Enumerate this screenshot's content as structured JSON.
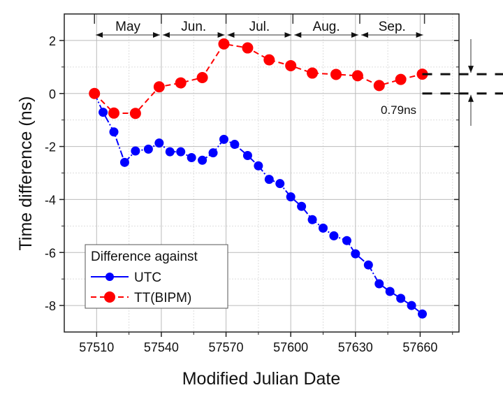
{
  "chart_data": {
    "type": "line",
    "xlabel": "Modified Julian Date",
    "ylabel": "Time difference (ns)",
    "xlim": [
      57495,
      57678
    ],
    "ylim": [
      -9,
      3
    ],
    "xticks": [
      57510,
      57540,
      57570,
      57600,
      57630,
      57660
    ],
    "yticks": [
      2,
      0,
      -2,
      -4,
      -6,
      -8
    ],
    "grid": true,
    "legend": {
      "title": "Difference against",
      "placement": "bottom-left"
    },
    "months": [
      {
        "label": "May",
        "start": 57509,
        "end": 57540
      },
      {
        "label": "Jun.",
        "start": 57540,
        "end": 57570
      },
      {
        "label": "Jul.",
        "start": 57570,
        "end": 57601
      },
      {
        "label": "Aug.",
        "start": 57601,
        "end": 57632
      },
      {
        "label": "Sep.",
        "start": 57632,
        "end": 57662
      }
    ],
    "annotation": {
      "label": "0.79ns",
      "from": 0,
      "to": 0.79
    },
    "series": [
      {
        "name": "UTC",
        "color": "#0000ff",
        "style": "dash-dot",
        "x": [
          57509,
          57513,
          57518,
          57523,
          57528,
          57534,
          57539,
          57544,
          57549,
          57554,
          57559,
          57564,
          57569,
          57574,
          57580,
          57585,
          57590,
          57595,
          57600,
          57605,
          57610,
          57615,
          57620,
          57626,
          57630,
          57636,
          57641,
          57646,
          57651,
          57656,
          57661
        ],
        "y": [
          0,
          -0.71,
          -1.45,
          -2.6,
          -2.17,
          -2.1,
          -1.87,
          -2.2,
          -2.2,
          -2.42,
          -2.52,
          -2.24,
          -1.73,
          -1.92,
          -2.34,
          -2.73,
          -3.24,
          -3.4,
          -3.9,
          -4.26,
          -4.76,
          -5.08,
          -5.37,
          -5.55,
          -6.05,
          -6.47,
          -7.18,
          -7.47,
          -7.73,
          -8.0,
          -8.32
        ]
      },
      {
        "name": "TT(BIPM)",
        "color": "#ff0000",
        "style": "dashed",
        "x": [
          57509,
          57518,
          57528,
          57539,
          57549,
          57559,
          57569,
          57580,
          57590,
          57600,
          57610,
          57621,
          57631,
          57641,
          57651,
          57661
        ],
        "y": [
          0,
          -0.74,
          -0.75,
          0.25,
          0.4,
          0.6,
          1.87,
          1.72,
          1.27,
          1.05,
          0.77,
          0.72,
          0.67,
          0.3,
          0.53,
          0.73
        ]
      }
    ]
  }
}
